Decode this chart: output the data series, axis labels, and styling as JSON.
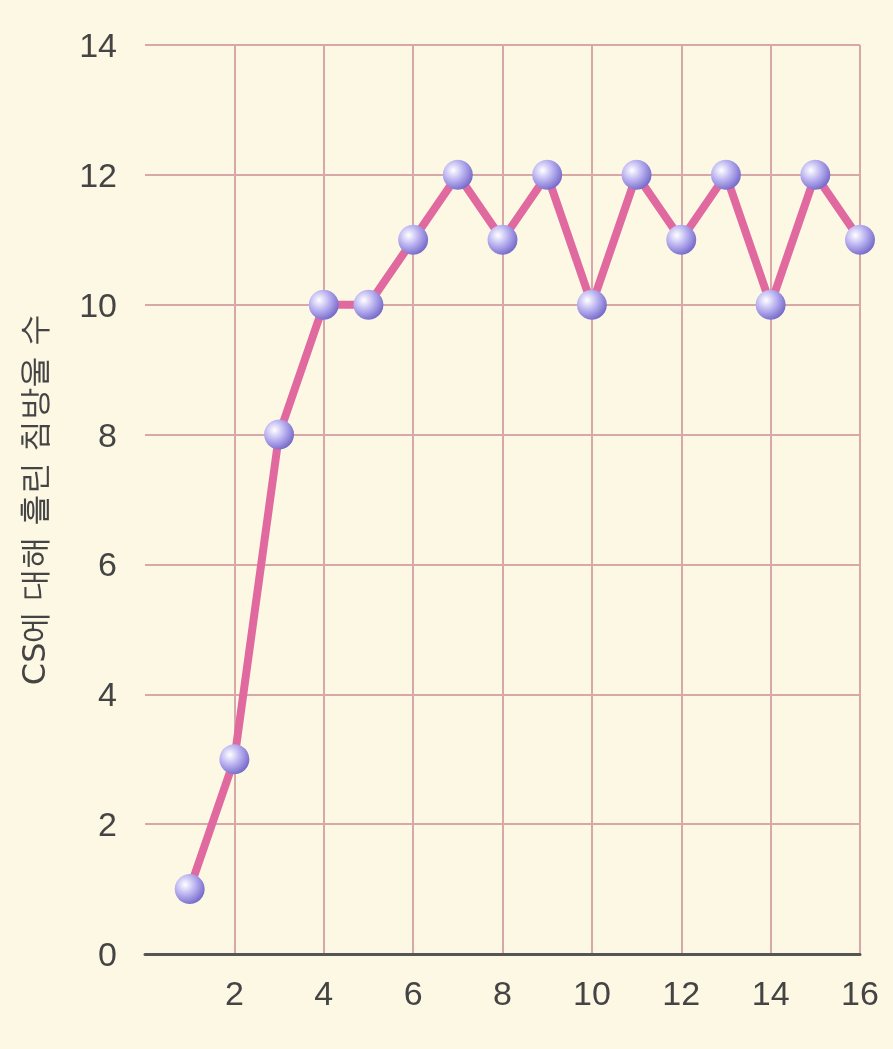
{
  "chart_data": {
    "type": "line",
    "ylabel": "CS에 대해 흘린 침방울 수",
    "x": [
      1,
      2,
      3,
      4,
      5,
      6,
      7,
      8,
      9,
      10,
      11,
      12,
      13,
      14,
      15,
      16
    ],
    "series": [
      {
        "color": "#e06aa0",
        "values": [
          1,
          3,
          8,
          10,
          10,
          11,
          12,
          11,
          12,
          10,
          12,
          11,
          12,
          10,
          12,
          11
        ]
      }
    ],
    "xlim": [
      0,
      16
    ],
    "xticks": [
      2,
      4,
      6,
      8,
      10,
      12,
      14,
      16
    ],
    "ylim": [
      0,
      14
    ],
    "yticks": [
      0,
      2,
      4,
      6,
      8,
      10,
      12,
      14
    ],
    "grid": true,
    "marker": "circle",
    "line_style": "solid"
  }
}
